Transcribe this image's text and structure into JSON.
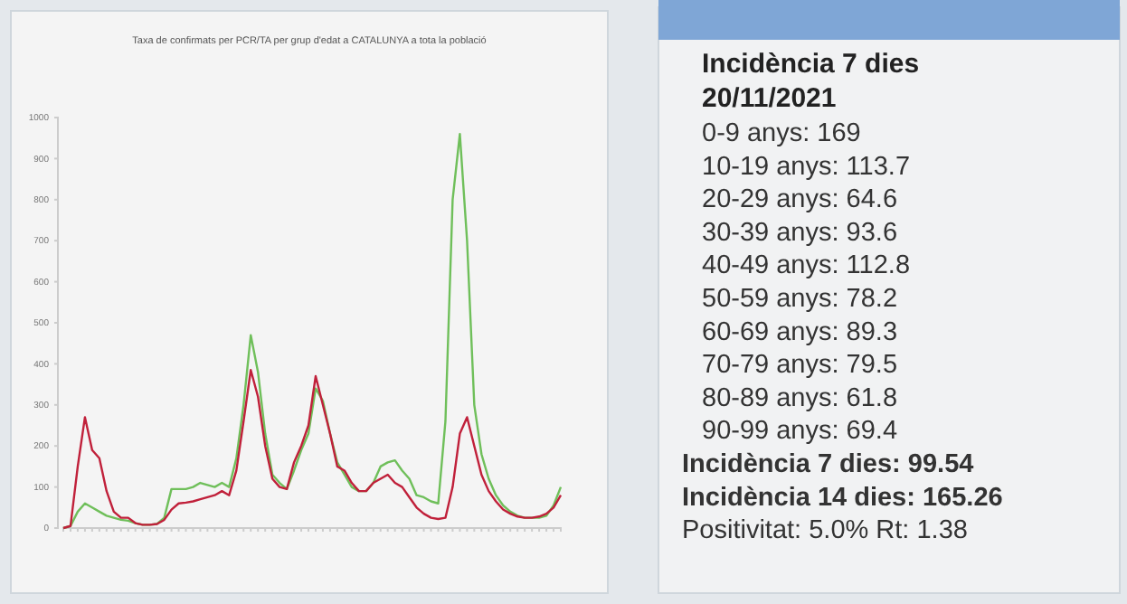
{
  "chart_data": [
    {
      "type": "line",
      "title": "Taxa de confirmats per PCR/TA per grup d'edat a CATALUNYA a tota la població",
      "categories": [
        null,
        null,
        null,
        null,
        null,
        null,
        null,
        null,
        null,
        null,
        null,
        null,
        null,
        null,
        null,
        null,
        null,
        null,
        null,
        null,
        null,
        null,
        null,
        null,
        null,
        null,
        null,
        null,
        null,
        null,
        null,
        null,
        null,
        null,
        null,
        null,
        null,
        null,
        null,
        null,
        null,
        null,
        null,
        null,
        null,
        null,
        null,
        null,
        null,
        null,
        null,
        null,
        null,
        null,
        null,
        null,
        null,
        null,
        null,
        null,
        null,
        null,
        null,
        null,
        null,
        null,
        null,
        null,
        null,
        null
      ],
      "series": [
        {
          "color": "#6fbf5a",
          "values": [
            0,
            5,
            40,
            60,
            50,
            40,
            30,
            25,
            20,
            18,
            12,
            8,
            8,
            10,
            25,
            95,
            95,
            95,
            100,
            110,
            105,
            100,
            110,
            100,
            170,
            300,
            470,
            380,
            230,
            130,
            110,
            95,
            140,
            190,
            230,
            340,
            310,
            230,
            160,
            130,
            100,
            90,
            90,
            110,
            150,
            160,
            165,
            140,
            120,
            80,
            75,
            65,
            60,
            260,
            800,
            960,
            700,
            300,
            180,
            120,
            80,
            55,
            40,
            30,
            25,
            25,
            25,
            30,
            55,
            100
          ]
        },
        {
          "color": "#c0203a",
          "values": [
            0,
            5,
            150,
            270,
            190,
            170,
            90,
            40,
            25,
            25,
            12,
            8,
            8,
            10,
            20,
            45,
            60,
            62,
            65,
            70,
            75,
            80,
            90,
            80,
            140,
            260,
            385,
            320,
            200,
            120,
            100,
            95,
            160,
            200,
            250,
            370,
            300,
            230,
            150,
            140,
            110,
            90,
            90,
            110,
            120,
            130,
            110,
            100,
            75,
            50,
            35,
            25,
            22,
            25,
            100,
            230,
            270,
            200,
            130,
            90,
            65,
            45,
            35,
            28,
            25,
            25,
            28,
            35,
            50,
            80
          ]
        }
      ],
      "ylim": [
        0,
        1000
      ],
      "yticks": [
        0,
        100,
        200,
        300,
        400,
        500,
        600,
        700,
        800,
        900,
        1000
      ],
      "legend": false,
      "grid": false
    },
    {
      "type": "other",
      "title": "Incidència 7 dies",
      "subtitle": "20/11/2021",
      "annotations": [
        "0-9 anys: 169",
        "10-19 anys: 113.7",
        "20-29 anys: 64.6",
        "30-39 anys: 93.6",
        "40-49 anys: 112.8",
        "50-59 anys: 78.2",
        "60-69 anys: 89.3",
        "70-79 anys: 79.5",
        "80-89 anys: 61.8",
        "90-99 anys: 69.4",
        "Incidència 7 dies:  99.54",
        "Incidència 14 dies: 165.26",
        "Positivitat: 5.0% Rt: 1.38"
      ]
    }
  ]
}
